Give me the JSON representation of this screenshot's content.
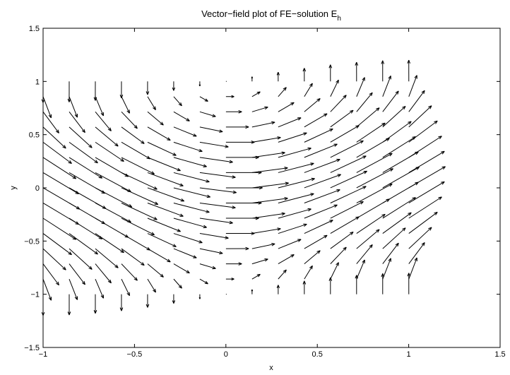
{
  "chart_data": {
    "type": "quiver",
    "title_main": "Vector−field plot of FE−solution E",
    "title_sub": "h",
    "xlabel": "x",
    "ylabel": "y",
    "xlim": [
      -1,
      1.5
    ],
    "ylim": [
      -1.5,
      1.5
    ],
    "xticks": [
      -1,
      -0.5,
      0,
      0.5,
      1,
      1.5
    ],
    "yticks": [
      -1.5,
      -1,
      -0.5,
      0,
      0.5,
      1,
      1.5
    ],
    "xtick_labels": [
      "−1",
      "−0.5",
      "0",
      "0.5",
      "1",
      "1.5"
    ],
    "ytick_labels": [
      "−1.5",
      "−1",
      "−0.5",
      "0",
      "0.5",
      "1",
      "1.5"
    ],
    "grid": false,
    "legend": false,
    "field": {
      "x_start": -1,
      "x_step": 0.1429,
      "x_count": 15,
      "y_start": -1,
      "y_step": 0.1429,
      "y_count": 15,
      "arrow_scale": 0.2
    }
  }
}
